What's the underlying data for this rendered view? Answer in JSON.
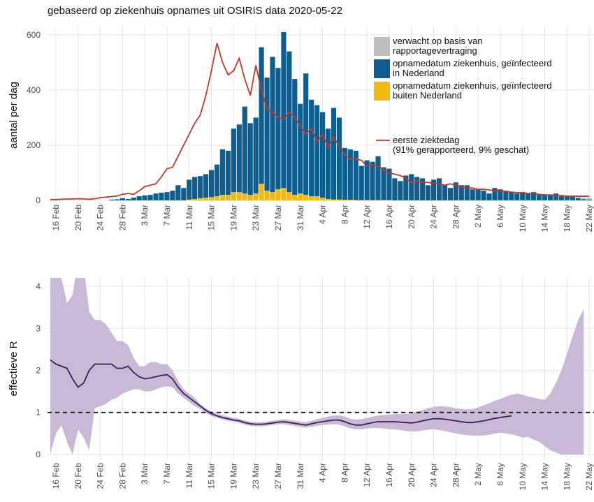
{
  "chart_data": [
    {
      "type": "bar",
      "title": "gebaseerd op ziekenhuis opnames uit OSIRIS data 2020-05-22",
      "ylabel": "aantal per dag",
      "ylim": [
        0,
        630
      ],
      "yticks": [
        0,
        200,
        400,
        600
      ],
      "grid": true,
      "categories": [
        null,
        "16 Feb",
        null,
        null,
        null,
        "20 Feb",
        null,
        null,
        null,
        "24 Feb",
        null,
        null,
        null,
        "28 Feb",
        null,
        null,
        null,
        "3 Mar",
        null,
        null,
        null,
        "7 Mar",
        null,
        null,
        null,
        "11 Mar",
        null,
        null,
        null,
        "15 Mar",
        null,
        null,
        null,
        "19 Mar",
        null,
        null,
        null,
        "23 Mar",
        null,
        null,
        null,
        "27 Mar",
        null,
        null,
        null,
        "31 Mar",
        null,
        null,
        null,
        "4 Apr",
        null,
        null,
        null,
        "8 Apr",
        null,
        null,
        null,
        "12 Apr",
        null,
        null,
        null,
        "16 Apr",
        null,
        null,
        null,
        "20 Apr",
        null,
        null,
        null,
        "24 Apr",
        null,
        null,
        null,
        "28 Apr",
        null,
        null,
        null,
        "2 May",
        null,
        null,
        null,
        "6 May",
        null,
        null,
        null,
        "10 May",
        null,
        null,
        null,
        "14 May",
        null,
        null,
        null,
        "18 May",
        null,
        null,
        null,
        "22 May"
      ],
      "series": [
        {
          "name": "verwacht op basis van\nrapportagevertraging",
          "color": "#bdbdbd",
          "values": [
            0,
            0,
            0,
            0,
            0,
            0,
            0,
            0,
            0,
            0,
            0,
            0,
            0,
            0,
            0,
            0,
            0,
            0,
            0,
            0,
            0,
            0,
            0,
            0,
            0,
            0,
            0,
            0,
            0,
            0,
            0,
            0,
            0,
            0,
            0,
            0,
            0,
            0,
            0,
            0,
            0,
            0,
            0,
            0,
            0,
            0,
            0,
            0,
            0,
            0,
            0,
            0,
            0,
            0,
            0,
            0,
            0,
            0,
            0,
            0,
            0,
            0,
            0,
            0,
            0,
            0,
            0,
            0,
            0,
            0,
            0,
            0,
            0,
            0,
            0,
            0,
            0,
            0,
            0,
            0,
            0,
            0,
            0,
            0,
            0,
            0,
            0,
            0,
            0,
            0,
            0,
            0,
            1,
            2,
            3,
            4,
            5,
            6
          ]
        },
        {
          "name": "opnamedatum ziekenhuis, geïnfecteerd\nin Nederland",
          "color": "#0e5f8f",
          "values": [
            0,
            0,
            0,
            0,
            0,
            0,
            0,
            0,
            0,
            0,
            0,
            3,
            4,
            8,
            5,
            10,
            15,
            18,
            20,
            25,
            28,
            30,
            35,
            55,
            45,
            72,
            80,
            80,
            85,
            98,
            115,
            165,
            160,
            230,
            245,
            315,
            260,
            275,
            495,
            410,
            490,
            440,
            565,
            510,
            420,
            325,
            440,
            350,
            330,
            310,
            255,
            332,
            297,
            188,
            183,
            179,
            124,
            144,
            139,
            159,
            119,
            114,
            80,
            70,
            90,
            95,
            85,
            80,
            55,
            75,
            80,
            55,
            45,
            65,
            55,
            55,
            40,
            40,
            35,
            25,
            45,
            40,
            35,
            30,
            25,
            30,
            25,
            30,
            20,
            20,
            20,
            25,
            15,
            15,
            13,
            8,
            4,
            3
          ]
        },
        {
          "name": "opnamedatum ziekenhuis, geïnfecteerd\nbuiten Nederland",
          "color": "#f5b914",
          "values": [
            0,
            0,
            0,
            0,
            0,
            0,
            0,
            0,
            0,
            0,
            0,
            0,
            0,
            0,
            0,
            0,
            0,
            0,
            0,
            0,
            0,
            0,
            0,
            0,
            0,
            3,
            5,
            8,
            10,
            12,
            15,
            20,
            20,
            30,
            30,
            25,
            20,
            25,
            60,
            35,
            30,
            40,
            45,
            30,
            20,
            25,
            20,
            15,
            15,
            10,
            5,
            3,
            3,
            2,
            2,
            1,
            1,
            1,
            1,
            1,
            1,
            1,
            0,
            0,
            0,
            0,
            0,
            0,
            0,
            0,
            0,
            0,
            0,
            0,
            0,
            0,
            0,
            0,
            0,
            0,
            0,
            0,
            0,
            0,
            0,
            0,
            0,
            0,
            0,
            0,
            0,
            0,
            0,
            0,
            0,
            0,
            0,
            0
          ]
        },
        {
          "name": "eerste ziektedag\n (91% gerapporteerd, 9% geschat)",
          "color": "#c0392b",
          "type": "line",
          "values": [
            3,
            3,
            4,
            5,
            5,
            6,
            5,
            4,
            6,
            10,
            12,
            14,
            16,
            22,
            25,
            22,
            35,
            50,
            55,
            60,
            85,
            115,
            120,
            160,
            200,
            240,
            280,
            310,
            380,
            470,
            570,
            500,
            455,
            470,
            515,
            440,
            380,
            490,
            400,
            330,
            320,
            300,
            295,
            320,
            300,
            270,
            240,
            260,
            210,
            240,
            190,
            230,
            195,
            165,
            150,
            150,
            145,
            125,
            130,
            125,
            110,
            100,
            95,
            90,
            80,
            65,
            70,
            65,
            65,
            62,
            60,
            55,
            60,
            55,
            50,
            45,
            45,
            40,
            40,
            38,
            35,
            35,
            33,
            30,
            28,
            28,
            25,
            25,
            22,
            20,
            20,
            18,
            18,
            15,
            15,
            15,
            15,
            15
          ]
        }
      ]
    },
    {
      "type": "line",
      "ylabel": "effectieve R",
      "ylim": [
        -0.1,
        4.2
      ],
      "yticks": [
        0,
        1,
        2,
        3,
        4
      ],
      "grid": true,
      "hline": 1,
      "color": "#3b1f5c",
      "band_color": "#c9b8d6",
      "categories": [
        null,
        "16 Feb",
        null,
        null,
        null,
        "20 Feb",
        null,
        null,
        null,
        "24 Feb",
        null,
        null,
        null,
        "28 Feb",
        null,
        null,
        null,
        "3 Mar",
        null,
        null,
        null,
        "7 Mar",
        null,
        null,
        null,
        "11 Mar",
        null,
        null,
        null,
        "15 Mar",
        null,
        null,
        null,
        "19 Mar",
        null,
        null,
        null,
        "23 Mar",
        null,
        null,
        null,
        "27 Mar",
        null,
        null,
        null,
        "31 Mar",
        null,
        null,
        null,
        "4 Apr",
        null,
        null,
        null,
        "8 Apr",
        null,
        null,
        null,
        "12 Apr",
        null,
        null,
        null,
        "16 Apr",
        null,
        null,
        null,
        "20 Apr",
        null,
        null,
        null,
        "24 Apr",
        null,
        null,
        null,
        "28 Apr",
        null,
        null,
        null,
        "2 May",
        null,
        null,
        null,
        "6 May",
        null,
        null,
        null,
        "10 May",
        null,
        null,
        null,
        "14 May",
        null,
        null,
        null,
        "18 May",
        null,
        null,
        null,
        "22 May"
      ],
      "values": [
        2.25,
        2.15,
        2.1,
        2.05,
        1.8,
        1.6,
        1.7,
        2.0,
        2.15,
        2.15,
        2.15,
        2.15,
        2.05,
        2.05,
        2.1,
        1.95,
        1.85,
        1.8,
        1.82,
        1.85,
        1.88,
        1.9,
        1.8,
        1.6,
        1.45,
        1.35,
        1.25,
        1.15,
        1.05,
        0.97,
        0.92,
        0.88,
        0.85,
        0.82,
        0.8,
        0.76,
        0.73,
        0.72,
        0.72,
        0.73,
        0.75,
        0.77,
        0.78,
        0.76,
        0.74,
        0.72,
        0.7,
        0.73,
        0.76,
        0.78,
        0.8,
        0.82,
        0.82,
        0.78,
        0.73,
        0.7,
        0.7,
        0.73,
        0.76,
        0.78,
        0.78,
        0.78,
        0.78,
        0.77,
        0.76,
        0.75,
        0.77,
        0.8,
        0.83,
        0.85,
        0.85,
        0.84,
        0.82,
        0.8,
        0.78,
        0.76,
        0.76,
        0.78,
        0.8,
        0.83,
        0.86,
        0.88,
        0.9,
        0.92,
        null,
        null,
        null,
        null,
        null,
        null,
        null,
        null,
        null,
        null,
        null,
        null,
        null,
        null
      ],
      "band_upper": [
        4.6,
        4.4,
        4.2,
        3.6,
        3.8,
        4.6,
        4.5,
        3.4,
        3.2,
        3.2,
        3.1,
        2.9,
        2.7,
        2.7,
        2.6,
        2.3,
        2.1,
        2.1,
        2.2,
        2.2,
        2.15,
        2.15,
        2.0,
        1.75,
        1.55,
        1.45,
        1.35,
        1.2,
        1.1,
        1.02,
        0.97,
        0.93,
        0.9,
        0.87,
        0.85,
        0.81,
        0.78,
        0.77,
        0.77,
        0.78,
        0.8,
        0.82,
        0.84,
        0.82,
        0.8,
        0.78,
        0.77,
        0.8,
        0.84,
        0.87,
        0.9,
        0.93,
        0.93,
        0.9,
        0.85,
        0.83,
        0.84,
        0.87,
        0.9,
        0.93,
        0.94,
        0.95,
        0.96,
        0.96,
        0.97,
        0.98,
        1.02,
        1.06,
        1.1,
        1.13,
        1.15,
        1.14,
        1.13,
        1.1,
        1.08,
        1.07,
        1.08,
        1.12,
        1.17,
        1.22,
        1.28,
        1.32,
        1.38,
        1.42,
        1.45,
        1.42,
        1.38,
        1.35,
        1.32,
        1.3,
        1.45,
        1.7,
        2.0,
        2.4,
        2.8,
        3.2,
        3.45,
        null
      ],
      "band_lower": [
        0,
        0.5,
        0.7,
        0.3,
        0,
        0.6,
        0.4,
        0.1,
        1.1,
        1.15,
        1.2,
        1.3,
        1.35,
        1.45,
        1.5,
        1.55,
        1.55,
        1.5,
        1.5,
        1.55,
        1.6,
        1.62,
        1.6,
        1.45,
        1.35,
        1.25,
        1.15,
        1.08,
        0.98,
        0.92,
        0.87,
        0.83,
        0.8,
        0.78,
        0.75,
        0.71,
        0.68,
        0.67,
        0.67,
        0.68,
        0.7,
        0.72,
        0.72,
        0.7,
        0.68,
        0.66,
        0.64,
        0.66,
        0.68,
        0.7,
        0.71,
        0.72,
        0.71,
        0.67,
        0.62,
        0.6,
        0.6,
        0.62,
        0.63,
        0.63,
        0.62,
        0.6,
        0.6,
        0.58,
        0.56,
        0.55,
        0.55,
        0.57,
        0.59,
        0.6,
        0.58,
        0.56,
        0.53,
        0.5,
        0.48,
        0.46,
        0.45,
        0.45,
        0.45,
        0.47,
        0.5,
        0.52,
        0.5,
        0.48,
        0.45,
        0.4,
        0.42,
        0.35,
        0.3,
        0.2,
        0.1,
        0.05,
        0,
        0,
        0,
        0,
        0,
        null
      ]
    }
  ]
}
